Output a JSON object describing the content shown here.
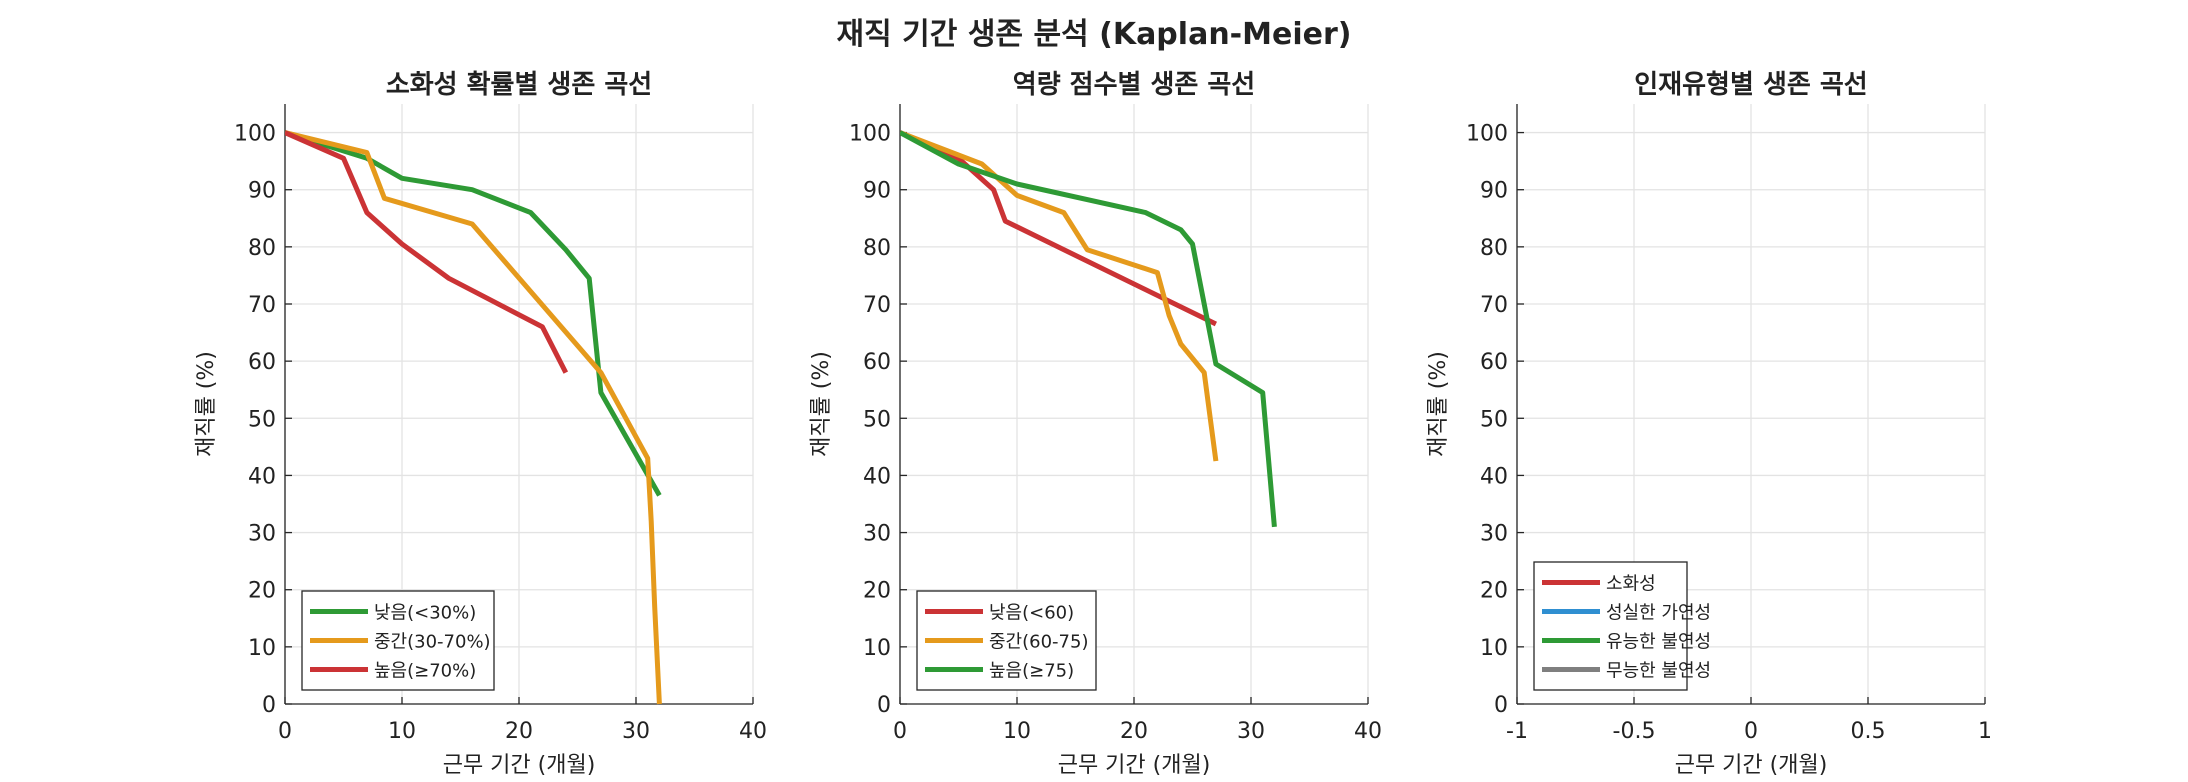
{
  "figure_title": "재직 기간 생존 분석 (Kaplan-Meier)",
  "chart_data": [
    {
      "type": "line",
      "title": "소화성 확률별 생존 곡선",
      "xlabel": "근무 기간 (개월)",
      "ylabel": "재직률 (%)",
      "xlim": [
        0,
        40
      ],
      "ylim": [
        0,
        105
      ],
      "xticks": [
        "0",
        "10",
        "20",
        "30",
        "40"
      ],
      "yticks": [
        "0",
        "10",
        "20",
        "30",
        "40",
        "50",
        "60",
        "70",
        "80",
        "90",
        "100"
      ],
      "grid": true,
      "legend_position": "lower-left",
      "series": [
        {
          "name": "낮음(<30%)",
          "color": "#2e9a35",
          "x": [
            0,
            7,
            10,
            16,
            21,
            24,
            26,
            27,
            32
          ],
          "y": [
            100,
            95.5,
            92,
            90,
            86,
            79.5,
            74.5,
            54.5,
            36.5
          ]
        },
        {
          "name": "중간(30-70%)",
          "color": "#e59a1c",
          "x": [
            0,
            7,
            8.5,
            16,
            27,
            31,
            31.3,
            31.6,
            32
          ],
          "y": [
            100,
            96.5,
            88.5,
            84,
            58,
            43,
            32,
            17,
            0
          ]
        },
        {
          "name": "높음(≥70%)",
          "color": "#cb3335",
          "x": [
            0,
            5,
            7,
            10,
            14,
            22,
            24
          ],
          "y": [
            100,
            95.5,
            86,
            80.5,
            74.5,
            66,
            58
          ]
        }
      ]
    },
    {
      "type": "line",
      "title": "역량 점수별 생존 곡선",
      "xlabel": "근무 기간 (개월)",
      "ylabel": "재직률 (%)",
      "xlim": [
        0,
        40
      ],
      "ylim": [
        0,
        105
      ],
      "xticks": [
        "0",
        "10",
        "20",
        "30",
        "40"
      ],
      "yticks": [
        "0",
        "10",
        "20",
        "30",
        "40",
        "50",
        "60",
        "70",
        "80",
        "90",
        "100"
      ],
      "grid": true,
      "legend_position": "lower-left",
      "series": [
        {
          "name": "낮음(<60)",
          "color": "#cb3335",
          "x": [
            0,
            5,
            8,
            9,
            27
          ],
          "y": [
            100,
            95.5,
            90,
            84.5,
            66.5
          ]
        },
        {
          "name": "중간(60-75)",
          "color": "#e59a1c",
          "x": [
            0,
            7,
            10,
            14,
            16,
            22,
            23,
            24,
            26,
            27
          ],
          "y": [
            100,
            94.5,
            89,
            86,
            79.5,
            75.5,
            68,
            63,
            58,
            42.5
          ]
        },
        {
          "name": "높음(≥75)",
          "color": "#2e9a35",
          "x": [
            0,
            5,
            10,
            21,
            24,
            25,
            27,
            31,
            32
          ],
          "y": [
            100,
            94.5,
            91,
            86,
            83,
            80.5,
            59.5,
            54.5,
            31
          ]
        }
      ]
    },
    {
      "type": "line",
      "title": "인재유형별 생존 곡선",
      "xlabel": "근무 기간 (개월)",
      "ylabel": "재직률 (%)",
      "xlim": [
        -1,
        1
      ],
      "ylim": [
        0,
        105
      ],
      "xticks": [
        "-1",
        "-0.5",
        "0",
        "0.5",
        "1"
      ],
      "yticks": [
        "0",
        "10",
        "20",
        "30",
        "40",
        "50",
        "60",
        "70",
        "80",
        "90",
        "100"
      ],
      "grid": true,
      "legend_position": "lower-left",
      "series": [
        {
          "name": "소화성",
          "color": "#cb3335",
          "x": [],
          "y": []
        },
        {
          "name": "성실한 가연성",
          "color": "#2f8fd1",
          "x": [],
          "y": []
        },
        {
          "name": "유능한 불연성",
          "color": "#2e9a35",
          "x": [],
          "y": []
        },
        {
          "name": "무능한 불연성",
          "color": "#7f7f7f",
          "x": [],
          "y": []
        }
      ]
    }
  ]
}
